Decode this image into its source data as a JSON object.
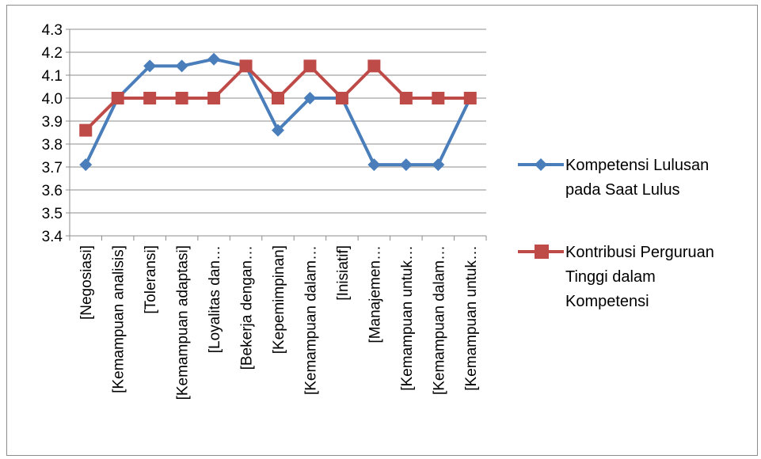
{
  "chart_data": {
    "type": "line",
    "title": "",
    "xlabel": "",
    "ylabel": "",
    "ylim": [
      3.4,
      4.3
    ],
    "yticks": [
      "3.4",
      "3.5",
      "3.6",
      "3.7",
      "3.8",
      "3.9",
      "4.0",
      "4.1",
      "4.2",
      "4.3"
    ],
    "grid": "horizontal",
    "legend_position": "right",
    "categories": [
      "[Negosiasi]",
      "[Kemampuan analisis]",
      "[Toleransi]",
      "[Kemampuan adaptasi]",
      "[Loyalitas dan…",
      "[Bekerja dengan…",
      "[Kepemimpinan]",
      "[Kemampuan dalam…",
      "[Inisiatif]",
      "[Manajemen…",
      "[Kemampuan untuk…",
      "[Kemampuan dalam…",
      "[Kemampuan untuk…"
    ],
    "series": [
      {
        "name": "Kompetensi Lulusan pada Saat Lulus",
        "legend_lines": [
          "Kompetensi Lulusan",
          "pada Saat Lulus"
        ],
        "color": "#4a7ebb",
        "marker": "diamond",
        "values": [
          3.71,
          4.0,
          4.14,
          4.14,
          4.17,
          4.14,
          3.86,
          4.0,
          4.0,
          3.71,
          3.71,
          3.71,
          4.0
        ]
      },
      {
        "name": "Kontribusi Perguruan Tinggi dalam Kompetensi",
        "legend_lines": [
          "Kontribusi Perguruan",
          "Tinggi dalam",
          "Kompetensi"
        ],
        "color": "#be4b48",
        "marker": "square",
        "values": [
          3.86,
          4.0,
          4.0,
          4.0,
          4.0,
          4.14,
          4.0,
          4.14,
          4.0,
          4.14,
          4.0,
          4.0,
          4.0
        ]
      }
    ]
  }
}
